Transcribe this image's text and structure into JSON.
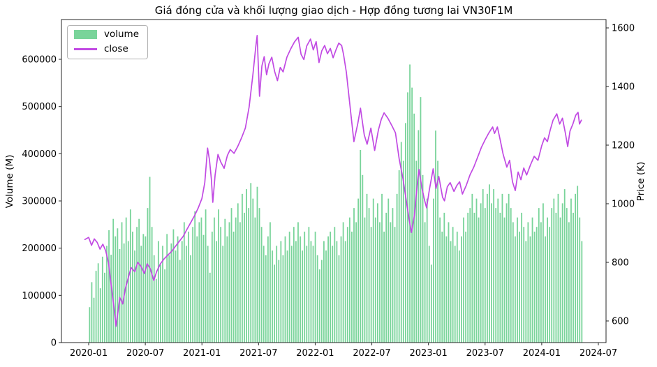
{
  "figure": {
    "title": "Giá đóng cửa và khối lượng giao dịch - Hợp đồng tương lai VN30F1M",
    "background": "#ffffff"
  },
  "chart_data": {
    "type": "bar+line",
    "title": "Giá đóng cửa và khối lượng giao dịch - Hợp đồng tương lai VN30F1M",
    "grid": false,
    "x_axis": {
      "tick_labels": [
        "2020-01",
        "2020-07",
        "2021-01",
        "2021-07",
        "2022-01",
        "2022-07",
        "2023-01",
        "2023-07",
        "2024-01",
        "2024-07"
      ],
      "months_between_ticks": 6,
      "data_start": "2019-12",
      "data_end": "2024-05"
    },
    "left_y": {
      "label": "Volume (M)",
      "ticks": [
        0,
        100000,
        200000,
        300000,
        400000,
        500000,
        600000
      ],
      "lim": [
        0,
        684000
      ]
    },
    "right_y": {
      "label": "Price (K)",
      "ticks": [
        600,
        800,
        1000,
        1200,
        1400,
        1600
      ],
      "lim": [
        526,
        1629
      ]
    },
    "legend": {
      "location": "upper left",
      "entries": [
        {
          "label": "volume",
          "type": "patch",
          "color": "#79d49a"
        },
        {
          "label": "close",
          "type": "line",
          "color": "#c14ae3"
        }
      ]
    },
    "series": [
      {
        "name": "volume",
        "type": "bar",
        "color": "#79d49a",
        "axis": "left",
        "value_scale": 1000,
        "start_month": 0.1,
        "end_month": 52.25,
        "values": [
          75,
          128,
          95,
          152,
          168,
          115,
          182,
          148,
          205,
          238,
          186,
          262,
          225,
          242,
          198,
          255,
          210,
          265,
          215,
          282,
          235,
          195,
          245,
          262,
          205,
          230,
          225,
          285,
          351,
          245,
          185,
          135,
          215,
          165,
          205,
          155,
          230,
          185,
          210,
          240,
          195,
          225,
          175,
          215,
          255,
          205,
          235,
          185,
          245,
          278,
          225,
          255,
          265,
          228,
          282,
          205,
          148,
          235,
          265,
          215,
          282,
          245,
          205,
          262,
          225,
          255,
          285,
          235,
          265,
          295,
          255,
          315,
          275,
          325,
          285,
          338,
          305,
          265,
          330,
          285,
          245,
          205,
          185,
          225,
          255,
          195,
          165,
          205,
          175,
          215,
          185,
          225,
          195,
          235,
          205,
          245,
          215,
          255,
          225,
          195,
          235,
          205,
          245,
          215,
          205,
          235,
          185,
          155,
          175,
          215,
          195,
          225,
          235,
          205,
          245,
          215,
          185,
          225,
          255,
          215,
          245,
          265,
          235,
          285,
          255,
          305,
          408,
          355,
          265,
          315,
          285,
          245,
          305,
          265,
          295,
          255,
          315,
          235,
          275,
          305,
          255,
          285,
          245,
          315,
          365,
          425,
          385,
          465,
          530,
          589,
          540,
          485,
          385,
          450,
          520,
          355,
          255,
          305,
          205,
          165,
          305,
          449,
          385,
          265,
          235,
          275,
          225,
          255,
          215,
          245,
          205,
          235,
          195,
          225,
          265,
          235,
          275,
          285,
          315,
          275,
          305,
          265,
          295,
          325,
          285,
          315,
          335,
          295,
          325,
          285,
          305,
          275,
          315,
          265,
          295,
          315,
          285,
          255,
          225,
          265,
          235,
          275,
          245,
          215,
          255,
          225,
          265,
          235,
          245,
          285,
          255,
          295,
          225,
          265,
          245,
          285,
          305,
          275,
          315,
          265,
          295,
          325,
          285,
          255,
          305,
          275,
          315,
          332,
          265,
          215
        ]
      },
      {
        "name": "close",
        "type": "line",
        "color": "#c14ae3",
        "axis": "right",
        "points_month_price": [
          [
            -0.4,
            878
          ],
          [
            0.0,
            885
          ],
          [
            0.3,
            858
          ],
          [
            0.6,
            880
          ],
          [
            0.9,
            868
          ],
          [
            1.2,
            845
          ],
          [
            1.5,
            862
          ],
          [
            1.8,
            840
          ],
          [
            2.1,
            800
          ],
          [
            2.4,
            718
          ],
          [
            2.7,
            640
          ],
          [
            2.9,
            582
          ],
          [
            3.1,
            630
          ],
          [
            3.3,
            680
          ],
          [
            3.6,
            658
          ],
          [
            3.9,
            712
          ],
          [
            4.2,
            748
          ],
          [
            4.5,
            782
          ],
          [
            4.9,
            768
          ],
          [
            5.2,
            800
          ],
          [
            5.5,
            788
          ],
          [
            5.9,
            762
          ],
          [
            6.2,
            795
          ],
          [
            6.5,
            780
          ],
          [
            6.9,
            738
          ],
          [
            7.2,
            768
          ],
          [
            7.6,
            795
          ],
          [
            8.0,
            812
          ],
          [
            8.4,
            825
          ],
          [
            8.8,
            838
          ],
          [
            9.2,
            855
          ],
          [
            9.6,
            872
          ],
          [
            10.0,
            888
          ],
          [
            10.4,
            912
          ],
          [
            10.8,
            935
          ],
          [
            11.2,
            958
          ],
          [
            11.6,
            985
          ],
          [
            12.0,
            1018
          ],
          [
            12.3,
            1072
          ],
          [
            12.6,
            1190
          ],
          [
            12.8,
            1150
          ],
          [
            13.0,
            1085
          ],
          [
            13.15,
            1005
          ],
          [
            13.4,
            1098
          ],
          [
            13.7,
            1168
          ],
          [
            14.0,
            1142
          ],
          [
            14.35,
            1121
          ],
          [
            14.7,
            1165
          ],
          [
            15.0,
            1185
          ],
          [
            15.4,
            1172
          ],
          [
            15.8,
            1196
          ],
          [
            16.2,
            1225
          ],
          [
            16.6,
            1258
          ],
          [
            17.0,
            1330
          ],
          [
            17.4,
            1440
          ],
          [
            17.7,
            1535
          ],
          [
            17.85,
            1574
          ],
          [
            18.1,
            1367
          ],
          [
            18.35,
            1470
          ],
          [
            18.6,
            1502
          ],
          [
            18.85,
            1440
          ],
          [
            19.1,
            1478
          ],
          [
            19.4,
            1500
          ],
          [
            19.7,
            1452
          ],
          [
            20.0,
            1420
          ],
          [
            20.3,
            1465
          ],
          [
            20.6,
            1450
          ],
          [
            21.0,
            1500
          ],
          [
            21.4,
            1528
          ],
          [
            21.8,
            1552
          ],
          [
            22.2,
            1568
          ],
          [
            22.5,
            1510
          ],
          [
            22.8,
            1492
          ],
          [
            23.1,
            1538
          ],
          [
            23.5,
            1562
          ],
          [
            23.8,
            1525
          ],
          [
            24.1,
            1553
          ],
          [
            24.4,
            1482
          ],
          [
            24.7,
            1522
          ],
          [
            25.0,
            1540
          ],
          [
            25.3,
            1512
          ],
          [
            25.6,
            1530
          ],
          [
            25.9,
            1498
          ],
          [
            26.2,
            1525
          ],
          [
            26.5,
            1548
          ],
          [
            26.8,
            1540
          ],
          [
            27.0,
            1510
          ],
          [
            27.3,
            1448
          ],
          [
            27.6,
            1360
          ],
          [
            27.9,
            1270
          ],
          [
            28.1,
            1212
          ],
          [
            28.5,
            1272
          ],
          [
            28.8,
            1326
          ],
          [
            29.2,
            1235
          ],
          [
            29.5,
            1203
          ],
          [
            29.9,
            1258
          ],
          [
            30.3,
            1182
          ],
          [
            30.7,
            1252
          ],
          [
            31.0,
            1288
          ],
          [
            31.3,
            1310
          ],
          [
            31.7,
            1292
          ],
          [
            32.1,
            1268
          ],
          [
            32.5,
            1242
          ],
          [
            32.9,
            1152
          ],
          [
            33.3,
            1085
          ],
          [
            33.7,
            1000
          ],
          [
            34.0,
            938
          ],
          [
            34.2,
            902
          ],
          [
            34.5,
            958
          ],
          [
            34.8,
            1062
          ],
          [
            35.0,
            1117
          ],
          [
            35.3,
            1055
          ],
          [
            35.6,
            1010
          ],
          [
            35.8,
            986
          ],
          [
            36.1,
            1048
          ],
          [
            36.5,
            1119
          ],
          [
            36.8,
            1052
          ],
          [
            37.1,
            1093
          ],
          [
            37.5,
            1022
          ],
          [
            37.7,
            1010
          ],
          [
            38.0,
            1058
          ],
          [
            38.3,
            1072
          ],
          [
            38.7,
            1042
          ],
          [
            39.0,
            1062
          ],
          [
            39.3,
            1075
          ],
          [
            39.6,
            1033
          ],
          [
            40.0,
            1062
          ],
          [
            40.4,
            1098
          ],
          [
            40.8,
            1125
          ],
          [
            41.2,
            1158
          ],
          [
            41.6,
            1192
          ],
          [
            42.0,
            1218
          ],
          [
            42.4,
            1242
          ],
          [
            42.8,
            1262
          ],
          [
            43.0,
            1240
          ],
          [
            43.3,
            1262
          ],
          [
            43.6,
            1218
          ],
          [
            43.9,
            1170
          ],
          [
            44.3,
            1125
          ],
          [
            44.6,
            1148
          ],
          [
            44.9,
            1075
          ],
          [
            45.2,
            1045
          ],
          [
            45.5,
            1108
          ],
          [
            45.8,
            1082
          ],
          [
            46.1,
            1122
          ],
          [
            46.4,
            1098
          ],
          [
            46.8,
            1132
          ],
          [
            47.2,
            1162
          ],
          [
            47.6,
            1148
          ],
          [
            48.0,
            1198
          ],
          [
            48.3,
            1225
          ],
          [
            48.6,
            1212
          ],
          [
            48.9,
            1252
          ],
          [
            49.2,
            1285
          ],
          [
            49.6,
            1307
          ],
          [
            49.9,
            1272
          ],
          [
            50.2,
            1292
          ],
          [
            50.5,
            1242
          ],
          [
            50.75,
            1195
          ],
          [
            51.0,
            1248
          ],
          [
            51.3,
            1272
          ],
          [
            51.6,
            1302
          ],
          [
            51.85,
            1312
          ],
          [
            52.0,
            1272
          ],
          [
            52.2,
            1285
          ]
        ]
      }
    ]
  }
}
